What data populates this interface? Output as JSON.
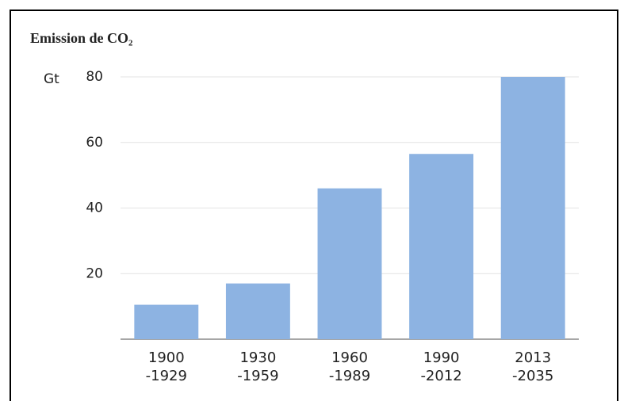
{
  "chart_data": {
    "type": "bar",
    "title": "Emission de CO₂",
    "y_label": "Gt",
    "categories": [
      [
        "1900",
        "-1929"
      ],
      [
        "1930",
        "-1959"
      ],
      [
        "1960",
        "-1989"
      ],
      [
        "1990",
        "-2012"
      ],
      [
        "2013",
        "-2035"
      ]
    ],
    "values": [
      10.5,
      17,
      46,
      56.5,
      80
    ],
    "color": "#8db3e2",
    "ylim": [
      0,
      80
    ],
    "yticks": [
      20,
      40,
      60,
      80
    ],
    "grid": true
  }
}
